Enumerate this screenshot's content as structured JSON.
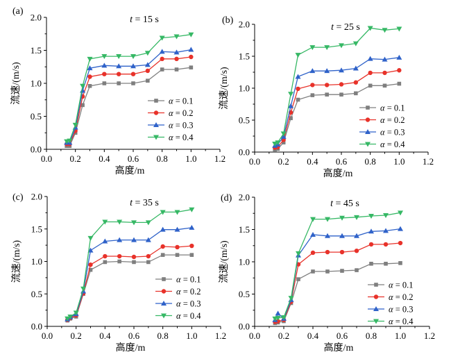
{
  "figure": {
    "alpha_symbol": "α",
    "series_colors": [
      "#7f7f7f",
      "#e8322a",
      "#2f62c9",
      "#36b865"
    ],
    "series_markers": [
      "square",
      "circle",
      "triangle-up",
      "triangle-down"
    ]
  },
  "chart_data": [
    {
      "type": "line",
      "panel_label": "(a)",
      "title_var": "t",
      "title_rest": " = 15 s",
      "xlabel": "高度/m",
      "ylabel": "流速/(m/s)",
      "xlim": [
        0.0,
        1.2
      ],
      "ylim": [
        0.0,
        2.0
      ],
      "xticks": [
        "0.0",
        "0.2",
        "0.4",
        "0.6",
        "0.8",
        "1.0",
        "1.2"
      ],
      "yticks": [
        "0.0",
        "0.5",
        "1.0",
        "1.5",
        "2.0"
      ],
      "grid": false,
      "legend_placement": "right",
      "x": [
        0.14,
        0.16,
        0.2,
        0.25,
        0.3,
        0.4,
        0.5,
        0.6,
        0.7,
        0.8,
        0.9,
        1.0
      ],
      "series": [
        {
          "name": "α = 0.1",
          "value_text": " = 0.1",
          "values": [
            0.05,
            0.05,
            0.25,
            0.67,
            0.96,
            1.0,
            1.0,
            1.0,
            1.04,
            1.21,
            1.21,
            1.24
          ]
        },
        {
          "name": "α = 0.2",
          "value_text": " = 0.2",
          "values": [
            0.08,
            0.08,
            0.28,
            0.8,
            1.1,
            1.14,
            1.14,
            1.14,
            1.19,
            1.37,
            1.37,
            1.4
          ]
        },
        {
          "name": "α = 0.3",
          "value_text": " = 0.3",
          "values": [
            0.1,
            0.1,
            0.33,
            0.89,
            1.23,
            1.27,
            1.26,
            1.26,
            1.28,
            1.48,
            1.47,
            1.51
          ]
        },
        {
          "name": "α = 0.4",
          "value_text": " = 0.4",
          "values": [
            0.12,
            0.13,
            0.37,
            0.96,
            1.37,
            1.41,
            1.41,
            1.41,
            1.46,
            1.69,
            1.71,
            1.74
          ]
        }
      ]
    },
    {
      "type": "line",
      "panel_label": "(b)",
      "title_var": "t",
      "title_rest": " = 25 s",
      "xlabel": "高度/m",
      "ylabel": "流速/(m/s)",
      "xlim": [
        0.0,
        1.2
      ],
      "ylim": [
        0.0,
        2.0
      ],
      "xticks": [
        "0.0",
        "0.2",
        "0.4",
        "0.6",
        "0.8",
        "1.0",
        "1.2"
      ],
      "yticks": [
        "0.0",
        "0.5",
        "1.0",
        "1.5",
        "2.0"
      ],
      "grid": false,
      "legend_placement": "right",
      "x": [
        0.14,
        0.16,
        0.2,
        0.25,
        0.3,
        0.4,
        0.5,
        0.6,
        0.7,
        0.8,
        0.9,
        1.0
      ],
      "series": [
        {
          "name": "α = 0.1",
          "value_text": " = 0.1",
          "values": [
            0.04,
            0.05,
            0.15,
            0.53,
            0.82,
            0.89,
            0.9,
            0.9,
            0.92,
            1.04,
            1.04,
            1.07
          ]
        },
        {
          "name": "α = 0.2",
          "value_text": " = 0.2",
          "values": [
            0.07,
            0.08,
            0.19,
            0.62,
            0.99,
            1.05,
            1.05,
            1.06,
            1.09,
            1.24,
            1.24,
            1.28
          ]
        },
        {
          "name": "α = 0.3",
          "value_text": " = 0.3",
          "values": [
            0.1,
            0.12,
            0.24,
            0.72,
            1.18,
            1.27,
            1.27,
            1.28,
            1.31,
            1.46,
            1.45,
            1.48
          ]
        },
        {
          "name": "α = 0.4",
          "value_text": " = 0.4",
          "values": [
            0.13,
            0.15,
            0.29,
            0.91,
            1.52,
            1.64,
            1.64,
            1.67,
            1.7,
            1.94,
            1.91,
            1.93
          ]
        }
      ]
    },
    {
      "type": "line",
      "panel_label": "(c)",
      "title_var": "t",
      "title_rest": " = 35 s",
      "xlabel": "高度/m",
      "ylabel": "流速/(m/s)",
      "xlim": [
        0.0,
        1.2
      ],
      "ylim": [
        0.0,
        2.0
      ],
      "xticks": [
        "0.0",
        "0.2",
        "0.4",
        "0.6",
        "0.8",
        "1.0",
        "1.2"
      ],
      "yticks": [
        "0.0",
        "0.5",
        "1.0",
        "1.5",
        "2.0"
      ],
      "grid": false,
      "legend_placement": "lower-right",
      "x": [
        0.14,
        0.16,
        0.2,
        0.25,
        0.3,
        0.4,
        0.5,
        0.6,
        0.7,
        0.8,
        0.9,
        1.0
      ],
      "series": [
        {
          "name": "α = 0.1",
          "value_text": " = 0.1",
          "values": [
            0.09,
            0.12,
            0.15,
            0.5,
            0.87,
            0.99,
            1.0,
            0.99,
            0.99,
            1.1,
            1.1,
            1.1
          ]
        },
        {
          "name": "α = 0.2",
          "value_text": " = 0.2",
          "values": [
            0.1,
            0.13,
            0.17,
            0.51,
            0.95,
            1.08,
            1.08,
            1.07,
            1.08,
            1.23,
            1.22,
            1.24
          ]
        },
        {
          "name": "α = 0.3",
          "value_text": " = 0.3",
          "values": [
            0.11,
            0.14,
            0.19,
            0.54,
            1.17,
            1.31,
            1.33,
            1.33,
            1.33,
            1.49,
            1.49,
            1.52
          ]
        },
        {
          "name": "α = 0.4",
          "value_text": " = 0.4",
          "values": [
            0.12,
            0.15,
            0.21,
            0.58,
            1.36,
            1.61,
            1.61,
            1.6,
            1.6,
            1.76,
            1.76,
            1.8
          ]
        }
      ]
    },
    {
      "type": "line",
      "panel_label": "(d)",
      "title_var": "t",
      "title_rest": " = 45 s",
      "xlabel": "高度/m",
      "ylabel": "流速/(m/s)",
      "xlim": [
        0.0,
        1.2
      ],
      "ylim": [
        0.0,
        2.0
      ],
      "xticks": [
        "0.0",
        "0.2",
        "0.4",
        "0.6",
        "0.8",
        "1.0",
        "1.2"
      ],
      "yticks": [
        "0.0",
        "0.5",
        "1.0",
        "1.5",
        "2.0"
      ],
      "grid": false,
      "legend_placement": "lower-right",
      "x": [
        0.14,
        0.16,
        0.2,
        0.25,
        0.3,
        0.4,
        0.5,
        0.6,
        0.7,
        0.8,
        0.9,
        1.0
      ],
      "series": [
        {
          "name": "α = 0.1",
          "value_text": " = 0.1",
          "values": [
            0.05,
            0.06,
            0.08,
            0.36,
            0.73,
            0.85,
            0.85,
            0.86,
            0.87,
            0.97,
            0.97,
            0.98
          ]
        },
        {
          "name": "α = 0.2",
          "value_text": " = 0.2",
          "values": [
            0.07,
            0.08,
            0.1,
            0.38,
            0.96,
            1.14,
            1.15,
            1.15,
            1.17,
            1.27,
            1.27,
            1.29
          ]
        },
        {
          "name": "α = 0.3",
          "value_text": " = 0.3",
          "values": [
            0.1,
            0.2,
            0.12,
            0.41,
            1.1,
            1.42,
            1.4,
            1.4,
            1.4,
            1.47,
            1.48,
            1.51
          ]
        },
        {
          "name": "α = 0.4",
          "value_text": " = 0.4",
          "values": [
            0.12,
            0.13,
            0.14,
            0.44,
            1.13,
            1.66,
            1.66,
            1.68,
            1.69,
            1.71,
            1.72,
            1.76
          ]
        }
      ]
    }
  ]
}
